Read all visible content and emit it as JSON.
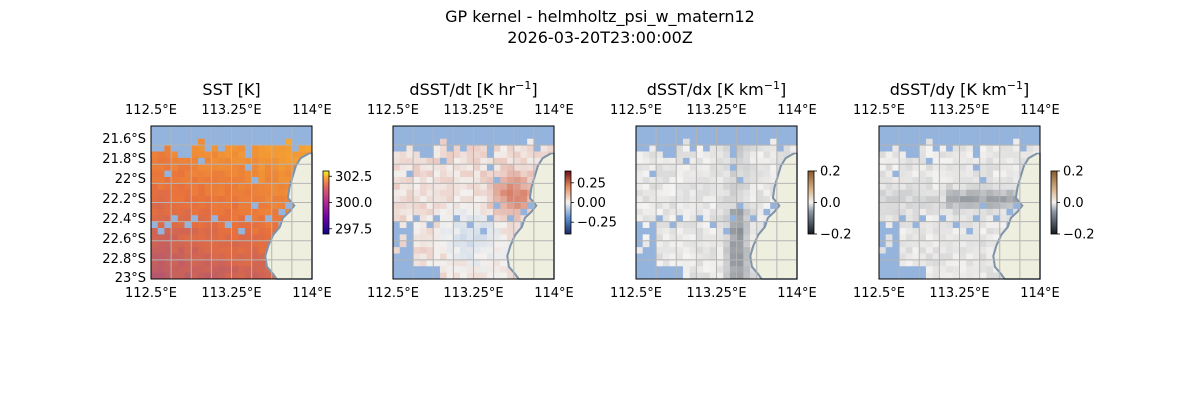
{
  "figure": {
    "suptitle_line1": "GP kernel - helmholtz_psi_w_matern12",
    "suptitle_line2": "2026-03-20T23:00:00Z"
  },
  "colors": {
    "water_mask": "#95b4dd",
    "land": "#efefdf",
    "coast": "#7f93a9",
    "grid": "#b4b4b4",
    "frame": "#000000"
  },
  "chart_data": [
    {
      "type": "heatmap",
      "title": "SST [K]",
      "xlabel": "",
      "ylabel": "",
      "x_ticks": [
        "112.5°E",
        "113.25°E",
        "114°E"
      ],
      "y_ticks": [
        "21.6°S",
        "21.8°S",
        "22°S",
        "22.2°S",
        "22.4°S",
        "22.6°S",
        "22.8°S",
        "23°S"
      ],
      "show_y_labels": true,
      "colormap": "plasma",
      "colorbar_ticks": [
        "302.5",
        "300.0",
        "297.5"
      ],
      "colorbar_range": [
        297,
        303
      ],
      "grid": true
    },
    {
      "type": "heatmap",
      "title": "dSST/dt [K hr",
      "title_sup": "−1",
      "title_end": "]",
      "x_ticks": [
        "112.5°E",
        "113.25°E",
        "114°E"
      ],
      "show_y_labels": false,
      "colormap": "diverging-red-blue",
      "colorbar_ticks": [
        "0.25",
        "0.00",
        "−0.25"
      ],
      "colorbar_range": [
        -0.4,
        0.4
      ],
      "grid": true
    },
    {
      "type": "heatmap",
      "title": "dSST/dx [K km",
      "title_sup": "−1",
      "title_end": "]",
      "x_ticks": [
        "112.5°E",
        "113.25°E",
        "114°E"
      ],
      "show_y_labels": false,
      "colormap": "grey-white-copper",
      "colorbar_ticks": [
        "0.2",
        "0.0",
        "−0.2"
      ],
      "colorbar_range": [
        -0.2,
        0.2
      ],
      "grid": true
    },
    {
      "type": "heatmap",
      "title": "dSST/dy [K km",
      "title_sup": "−1",
      "title_end": "]",
      "x_ticks": [
        "112.5°E",
        "113.25°E",
        "114°E"
      ],
      "show_y_labels": false,
      "colormap": "grey-white-copper",
      "colorbar_ticks": [
        "0.2",
        "0.0",
        "−0.2"
      ],
      "colorbar_range": [
        -0.2,
        0.2
      ],
      "grid": true
    }
  ]
}
